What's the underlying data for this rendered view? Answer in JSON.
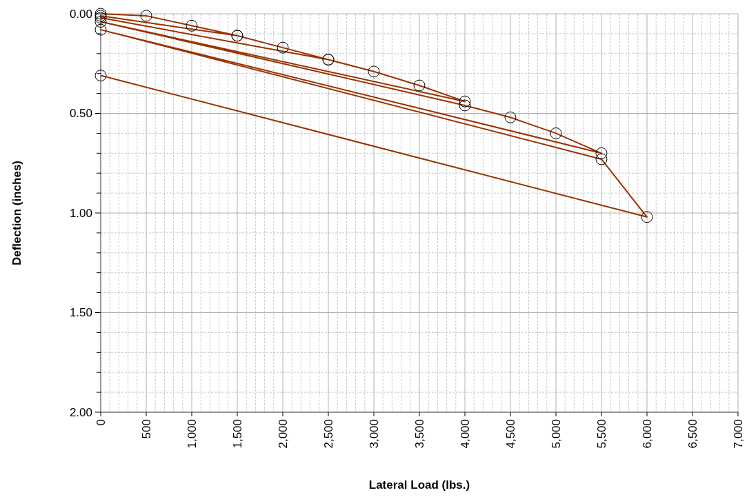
{
  "chart_data": {
    "type": "line",
    "xlabel": "Lateral Load (lbs.)",
    "ylabel": "Deflection (inches)",
    "x": [
      0,
      500,
      1000,
      1500,
      0,
      1500,
      2000,
      2500,
      0,
      2500,
      3000,
      3500,
      4000,
      0,
      4000,
      4500,
      5000,
      5500,
      0,
      5500,
      6000,
      0
    ],
    "series": [
      {
        "color": "#993300",
        "values": [
          0,
          0.01,
          0.06,
          0.11,
          0.01,
          0.11,
          0.17,
          0.23,
          0.02,
          0.23,
          0.29,
          0.36,
          0.44,
          0.04,
          0.46,
          0.52,
          0.6,
          0.7,
          0.08,
          0.73,
          1.02,
          0.31
        ]
      }
    ],
    "xlim": [
      0,
      7000
    ],
    "xticks": [
      0,
      {
        "value": 500,
        "label": "500"
      },
      {
        "value": 1000,
        "label": "1,000"
      },
      {
        "value": 1500,
        "label": "1,500"
      },
      {
        "value": 2000,
        "label": "2,000"
      },
      {
        "value": 2500,
        "label": "2,500"
      },
      {
        "value": 3000,
        "label": "3,000"
      },
      {
        "value": 3500,
        "label": "3,500"
      },
      {
        "value": 4000,
        "label": "4,000"
      },
      {
        "value": 4500,
        "label": "4,500"
      },
      {
        "value": 5000,
        "label": "5,000"
      },
      {
        "value": 5500,
        "label": "5,500"
      },
      {
        "value": 6000,
        "label": "6,000"
      },
      {
        "value": 6500,
        "label": "6,500"
      },
      {
        "value": 7000,
        "label": "7,000"
      }
    ],
    "ylim": [
      2,
      0
    ],
    "yticks": [
      {
        "value": 0,
        "label": "0.00"
      },
      {
        "value": 0.5,
        "label": "0.50"
      },
      {
        "value": 1,
        "label": "1.00"
      },
      {
        "value": 1.5,
        "label": "1.50"
      },
      {
        "value": 2,
        "label": "2.00"
      }
    ],
    "grid": true,
    "marker": "circle",
    "line_style": "solid"
  }
}
